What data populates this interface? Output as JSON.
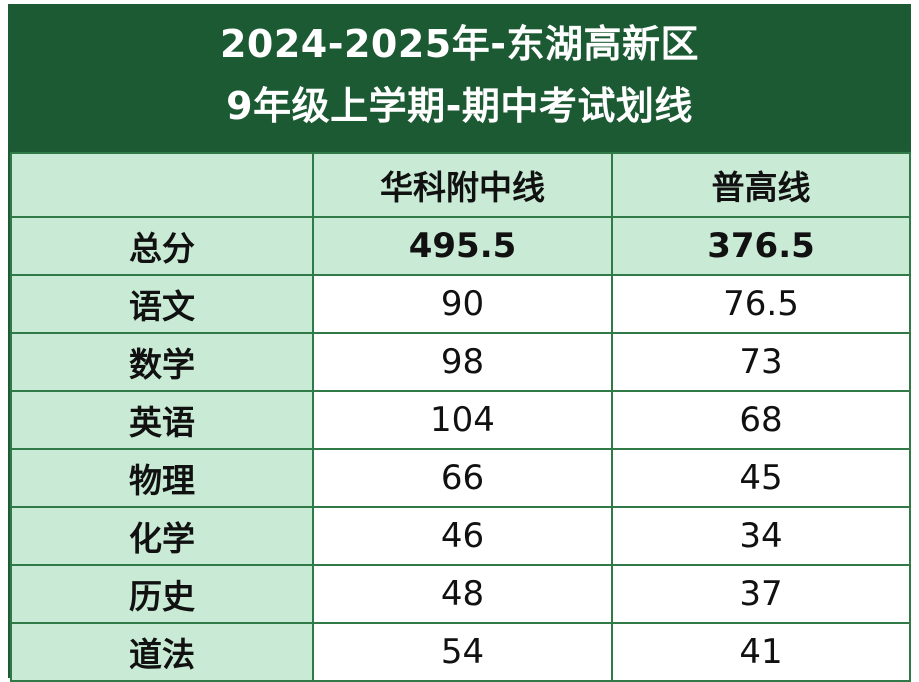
{
  "title": {
    "line1": "2024-2025年-东湖高新区",
    "line2": "9年级上学期-期中考试划线"
  },
  "header": {
    "corner": "",
    "col1": "华科附中线",
    "col2": "普高线"
  },
  "total": {
    "label": "总分",
    "col1": "495.5",
    "col2": "376.5"
  },
  "rows": [
    {
      "subject": "语文",
      "col1": "90",
      "col2": "76.5"
    },
    {
      "subject": "数学",
      "col1": "98",
      "col2": "73"
    },
    {
      "subject": "英语",
      "col1": "104",
      "col2": "68"
    },
    {
      "subject": "物理",
      "col1": "66",
      "col2": "45"
    },
    {
      "subject": "化学",
      "col1": "46",
      "col2": "34"
    },
    {
      "subject": "历史",
      "col1": "48",
      "col2": "37"
    },
    {
      "subject": "道法",
      "col1": "54",
      "col2": "41"
    }
  ],
  "colors": {
    "title_bg": "#1c5a33",
    "header_bg": "#c9ebd6",
    "border": "#2f7a47"
  }
}
